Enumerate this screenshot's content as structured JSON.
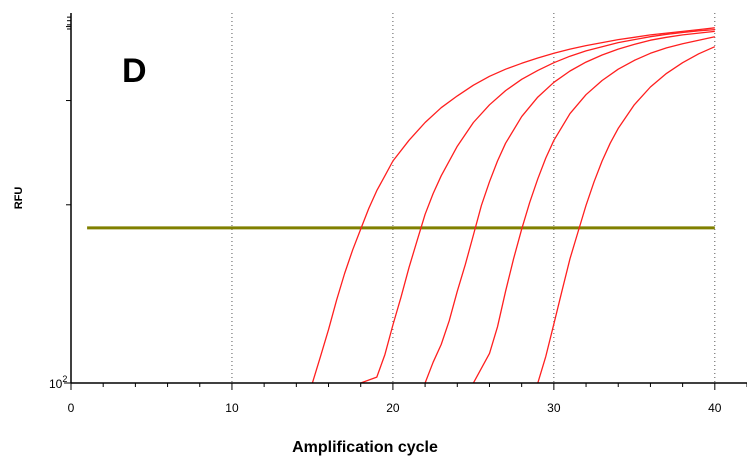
{
  "chart_data": {
    "type": "line",
    "panel_label": "D",
    "xlabel": "Amplification cycle",
    "ylabel": "RFU",
    "xlim": [
      0,
      42
    ],
    "ylim_log10": [
      2.0,
      2.625
    ],
    "y_scale": "log",
    "x_ticks": [
      "0",
      "10",
      "20",
      "30",
      "40"
    ],
    "y_tick_label": {
      "base": "10",
      "exponent": "2"
    },
    "grid": "vertical dotted at x = 10, 20, 30, 40",
    "colors": {
      "curves": "#ff1f1f",
      "threshold": "#808000",
      "axis": "#000000",
      "grid": "#555555"
    },
    "threshold": {
      "y_log10": 2.262,
      "x": [
        1,
        40
      ]
    },
    "series": [
      {
        "x": [
          15,
          15.5,
          16,
          16.5,
          17,
          17.5,
          18,
          18.5,
          19,
          19.5,
          20,
          21,
          22,
          23,
          24,
          25,
          26,
          27,
          28,
          29,
          30,
          31,
          32,
          33,
          34,
          35,
          36,
          37,
          38,
          39,
          40
        ],
        "y_log10": [
          2.0,
          2.045,
          2.09,
          2.14,
          2.185,
          2.225,
          2.26,
          2.295,
          2.325,
          2.35,
          2.375,
          2.41,
          2.44,
          2.465,
          2.485,
          2.503,
          2.518,
          2.53,
          2.54,
          2.549,
          2.557,
          2.564,
          2.57,
          2.575,
          2.58,
          2.584,
          2.588,
          2.591,
          2.594,
          2.597,
          2.6
        ]
      },
      {
        "x": [
          18,
          19,
          19.5,
          20,
          20.5,
          21,
          21.5,
          22,
          22.5,
          23,
          24,
          25,
          26,
          27,
          28,
          29,
          30,
          31,
          32,
          33,
          34,
          35,
          36,
          37,
          38,
          39,
          40
        ],
        "y_log10": [
          2.0,
          2.01,
          2.048,
          2.098,
          2.145,
          2.195,
          2.24,
          2.285,
          2.32,
          2.35,
          2.4,
          2.44,
          2.47,
          2.494,
          2.513,
          2.528,
          2.541,
          2.552,
          2.561,
          2.568,
          2.575,
          2.58,
          2.585,
          2.589,
          2.592,
          2.595,
          2.597
        ]
      },
      {
        "x": [
          22,
          22.5,
          23,
          23.5,
          24,
          24.5,
          25,
          25.5,
          26,
          26.5,
          27,
          28,
          29,
          30,
          31,
          32,
          33,
          34,
          35,
          36,
          37,
          38,
          39,
          40
        ],
        "y_log10": [
          2.0,
          2.035,
          2.065,
          2.105,
          2.155,
          2.2,
          2.25,
          2.3,
          2.34,
          2.375,
          2.405,
          2.45,
          2.483,
          2.508,
          2.527,
          2.542,
          2.554,
          2.564,
          2.572,
          2.579,
          2.584,
          2.588,
          2.591,
          2.594
        ]
      },
      {
        "x": [
          25,
          26,
          26.5,
          27,
          27.5,
          28,
          28.5,
          29,
          29.5,
          30,
          31,
          32,
          33,
          34,
          35,
          36,
          37,
          38,
          39,
          40
        ],
        "y_log10": [
          2.0,
          2.05,
          2.095,
          2.155,
          2.21,
          2.26,
          2.305,
          2.345,
          2.38,
          2.41,
          2.455,
          2.487,
          2.511,
          2.53,
          2.545,
          2.557,
          2.566,
          2.573,
          2.579,
          2.585
        ]
      },
      {
        "x": [
          29,
          29.5,
          30,
          30.5,
          31,
          31.5,
          32,
          32.5,
          33,
          33.5,
          34,
          35,
          36,
          37,
          38,
          39,
          40
        ],
        "y_log10": [
          2.0,
          2.045,
          2.1,
          2.155,
          2.21,
          2.255,
          2.3,
          2.34,
          2.375,
          2.405,
          2.43,
          2.47,
          2.5,
          2.523,
          2.541,
          2.556,
          2.568
        ]
      }
    ]
  }
}
